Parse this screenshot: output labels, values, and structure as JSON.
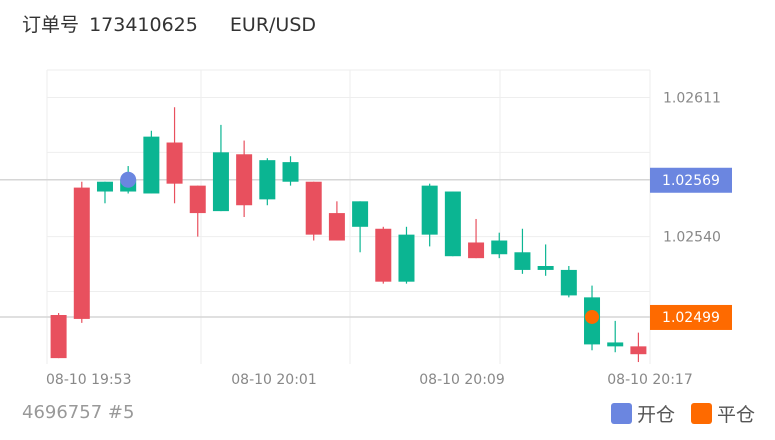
{
  "header": {
    "order_label": "订单号",
    "order_id": "173410625",
    "symbol": "EUR/USD"
  },
  "footer": {
    "account": "4696757 #5"
  },
  "legend": {
    "open_label": "开仓",
    "close_label": "平仓"
  },
  "colors": {
    "up": "#0bb592",
    "down": "#e8505e",
    "open": "#6b86e0",
    "close": "#fe6a00",
    "grid": "#eeeeee",
    "axis_text": "#888888"
  },
  "chart_data": {
    "type": "candlestick",
    "title": "",
    "ylim": [
      1.02475,
      1.02625
    ],
    "y_ticks": [
      "1.02611",
      "1.02540"
    ],
    "x_ticks": [
      "08-10 19:53",
      "08-10 20:01",
      "08-10 20:09",
      "08-10 20:17"
    ],
    "open_price": {
      "value": "1.02569",
      "candle_index": 3
    },
    "close_price": {
      "value": "1.02499",
      "candle_index": 23
    },
    "candles": [
      {
        "o": 1.025,
        "c": 1.02478,
        "h": 1.02501,
        "l": 1.02478
      },
      {
        "o": 1.02565,
        "c": 1.02498,
        "h": 1.02568,
        "l": 1.02496
      },
      {
        "o": 1.02563,
        "c": 1.02568,
        "h": 1.02568,
        "l": 1.02557
      },
      {
        "o": 1.02563,
        "c": 1.02569,
        "h": 1.02576,
        "l": 1.02562
      },
      {
        "o": 1.02562,
        "c": 1.02591,
        "h": 1.02594,
        "l": 1.02562
      },
      {
        "o": 1.02588,
        "c": 1.02567,
        "h": 1.02606,
        "l": 1.02557
      },
      {
        "o": 1.02566,
        "c": 1.02552,
        "h": 1.02566,
        "l": 1.0254
      },
      {
        "o": 1.02553,
        "c": 1.02583,
        "h": 1.02597,
        "l": 1.02553
      },
      {
        "o": 1.02582,
        "c": 1.02556,
        "h": 1.02589,
        "l": 1.0255
      },
      {
        "o": 1.02559,
        "c": 1.02579,
        "h": 1.0258,
        "l": 1.02556
      },
      {
        "o": 1.02568,
        "c": 1.02578,
        "h": 1.02581,
        "l": 1.02566
      },
      {
        "o": 1.02568,
        "c": 1.02541,
        "h": 1.02568,
        "l": 1.02538
      },
      {
        "o": 1.02552,
        "c": 1.02538,
        "h": 1.02558,
        "l": 1.02538
      },
      {
        "o": 1.02545,
        "c": 1.02558,
        "h": 1.02558,
        "l": 1.02532
      },
      {
        "o": 1.02544,
        "c": 1.02517,
        "h": 1.02545,
        "l": 1.02516
      },
      {
        "o": 1.02517,
        "c": 1.02541,
        "h": 1.02545,
        "l": 1.02516
      },
      {
        "o": 1.02541,
        "c": 1.02566,
        "h": 1.02567,
        "l": 1.02535
      },
      {
        "o": 1.0253,
        "c": 1.02563,
        "h": 1.02563,
        "l": 1.0253
      },
      {
        "o": 1.02537,
        "c": 1.02529,
        "h": 1.02549,
        "l": 1.02529
      },
      {
        "o": 1.02531,
        "c": 1.02538,
        "h": 1.02542,
        "l": 1.02529
      },
      {
        "o": 1.02523,
        "c": 1.02532,
        "h": 1.02544,
        "l": 1.02521
      },
      {
        "o": 1.02523,
        "c": 1.02525,
        "h": 1.02536,
        "l": 1.0252
      },
      {
        "o": 1.0251,
        "c": 1.02523,
        "h": 1.02525,
        "l": 1.02509
      },
      {
        "o": 1.02485,
        "c": 1.02509,
        "h": 1.02515,
        "l": 1.02482
      },
      {
        "o": 1.02484,
        "c": 1.02486,
        "h": 1.02497,
        "l": 1.02481
      },
      {
        "o": 1.02484,
        "c": 1.0248,
        "h": 1.02491,
        "l": 1.02476
      }
    ]
  }
}
